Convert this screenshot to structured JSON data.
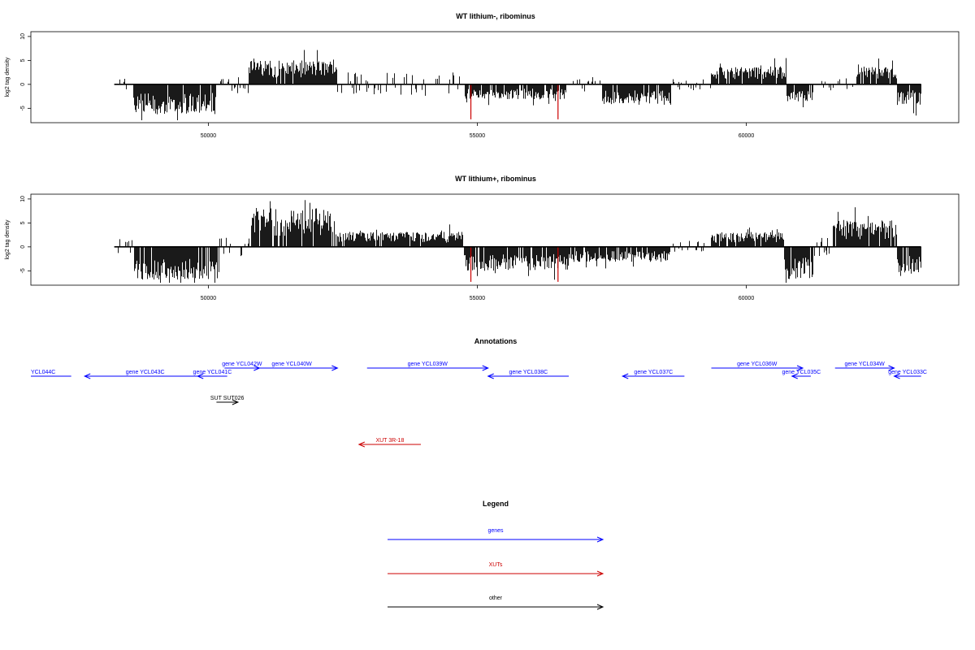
{
  "chart_data": [
    {
      "type": "bar",
      "title": "WT lithium-, ribominus",
      "xlabel": "",
      "ylabel": "log2 tag density",
      "xlim": [
        46700,
        63950
      ],
      "ylim": [
        -8,
        11
      ],
      "yticks": [
        -5,
        0,
        5,
        10
      ],
      "xticks": [
        50000,
        55000,
        60000
      ],
      "baseline": [
        48250,
        63250
      ],
      "highlight_color": "#cc0000",
      "bar_color": "#000000",
      "highlight_positions": [
        54880,
        56500
      ],
      "segments": [
        {
          "start": 48250,
          "end": 48600,
          "sign": 0,
          "amp": 1.0
        },
        {
          "start": 48600,
          "end": 50150,
          "sign": -1,
          "amp": 5.0
        },
        {
          "start": 50150,
          "end": 50750,
          "sign": 0,
          "amp": 1.5
        },
        {
          "start": 50750,
          "end": 52400,
          "sign": 1,
          "amp": 4.0
        },
        {
          "start": 52400,
          "end": 54750,
          "sign": 0,
          "amp": 2.0
        },
        {
          "start": 54750,
          "end": 56650,
          "sign": -1,
          "amp": 2.5
        },
        {
          "start": 56650,
          "end": 57300,
          "sign": 0,
          "amp": 1.5
        },
        {
          "start": 57300,
          "end": 58600,
          "sign": -1,
          "amp": 3.5
        },
        {
          "start": 58600,
          "end": 59350,
          "sign": 0,
          "amp": 1.0
        },
        {
          "start": 59350,
          "end": 60750,
          "sign": 1,
          "amp": 3.0
        },
        {
          "start": 60750,
          "end": 61250,
          "sign": -1,
          "amp": 3.0
        },
        {
          "start": 61250,
          "end": 62050,
          "sign": 0,
          "amp": 1.0
        },
        {
          "start": 62050,
          "end": 62800,
          "sign": 1,
          "amp": 3.0
        },
        {
          "start": 62800,
          "end": 63250,
          "sign": -1,
          "amp": 3.5
        }
      ]
    },
    {
      "type": "bar",
      "title": "WT lithium+, ribominus",
      "xlabel": "",
      "ylabel": "log2 tag density",
      "xlim": [
        46700,
        63950
      ],
      "ylim": [
        -8,
        11
      ],
      "yticks": [
        -5,
        0,
        5,
        10
      ],
      "xticks": [
        50000,
        55000,
        60000
      ],
      "baseline": [
        48250,
        63250
      ],
      "highlight_color": "#cc0000",
      "bar_color": "#000000",
      "highlight_positions": [
        54880,
        56500
      ],
      "segments": [
        {
          "start": 48250,
          "end": 48600,
          "sign": 0,
          "amp": 1.5
        },
        {
          "start": 48600,
          "end": 50200,
          "sign": -1,
          "amp": 5.5
        },
        {
          "start": 50200,
          "end": 50800,
          "sign": 0,
          "amp": 1.5
        },
        {
          "start": 50800,
          "end": 52400,
          "sign": 1,
          "amp": 6.5
        },
        {
          "start": 52400,
          "end": 54750,
          "sign": 1,
          "amp": 2.5
        },
        {
          "start": 54750,
          "end": 56700,
          "sign": -1,
          "amp": 4.0
        },
        {
          "start": 56700,
          "end": 58600,
          "sign": -1,
          "amp": 2.5
        },
        {
          "start": 58600,
          "end": 59350,
          "sign": 0,
          "amp": 1.0
        },
        {
          "start": 59350,
          "end": 60700,
          "sign": 1,
          "amp": 2.5
        },
        {
          "start": 60700,
          "end": 61250,
          "sign": -1,
          "amp": 5.5
        },
        {
          "start": 61250,
          "end": 61600,
          "sign": 0,
          "amp": 1.5
        },
        {
          "start": 61600,
          "end": 62800,
          "sign": 1,
          "amp": 4.5
        },
        {
          "start": 62800,
          "end": 63250,
          "sign": -1,
          "amp": 5.0
        }
      ]
    }
  ],
  "annotations": {
    "title": "Annotations",
    "features": [
      {
        "label": "YCL044C",
        "start": 46700,
        "end": 47450,
        "dir": "none",
        "color": "#0000ff",
        "row": 1,
        "label_pos": "left"
      },
      {
        "label": "gene YCL043C",
        "start": 47700,
        "end": 49950,
        "dir": "left",
        "color": "#0000ff",
        "row": 1
      },
      {
        "label": "gene YCL041C",
        "start": 49800,
        "end": 50350,
        "dir": "left",
        "color": "#0000ff",
        "row": 1
      },
      {
        "label": "gene YCL042W",
        "start": 50300,
        "end": 50950,
        "dir": "right",
        "color": "#0000ff",
        "row": 0
      },
      {
        "label": "gene YCL040W",
        "start": 50700,
        "end": 52400,
        "dir": "right",
        "color": "#0000ff",
        "row": 0
      },
      {
        "label": "gene YCL039W",
        "start": 52950,
        "end": 55200,
        "dir": "right",
        "color": "#0000ff",
        "row": 0
      },
      {
        "label": "gene YCL038C",
        "start": 55200,
        "end": 56700,
        "dir": "left",
        "color": "#0000ff",
        "row": 1
      },
      {
        "label": "gene YCL037C",
        "start": 57700,
        "end": 58850,
        "dir": "left",
        "color": "#0000ff",
        "row": 1
      },
      {
        "label": "gene YCL036W",
        "start": 59350,
        "end": 61050,
        "dir": "right",
        "color": "#0000ff",
        "row": 0
      },
      {
        "label": "gene YCL035C",
        "start": 60850,
        "end": 61200,
        "dir": "left",
        "color": "#0000ff",
        "row": 1
      },
      {
        "label": "gene YCL034W",
        "start": 61650,
        "end": 62750,
        "dir": "right",
        "color": "#0000ff",
        "row": 0
      },
      {
        "label": "gene YCL033C",
        "start": 62750,
        "end": 63250,
        "dir": "left",
        "color": "#0000ff",
        "row": 1
      },
      {
        "label": "SUT SUT026",
        "start": 50150,
        "end": 50550,
        "dir": "right",
        "color": "#000000",
        "row": 2
      },
      {
        "label": "XUT 3R-18",
        "start": 52800,
        "end": 53950,
        "dir": "left",
        "color": "#cc0000",
        "row": 3
      }
    ]
  },
  "legend": {
    "title": "Legend",
    "items": [
      {
        "label": "genes",
        "color": "#0000ff"
      },
      {
        "label": "XUTs",
        "color": "#cc0000"
      },
      {
        "label": "other",
        "color": "#000000"
      }
    ]
  }
}
